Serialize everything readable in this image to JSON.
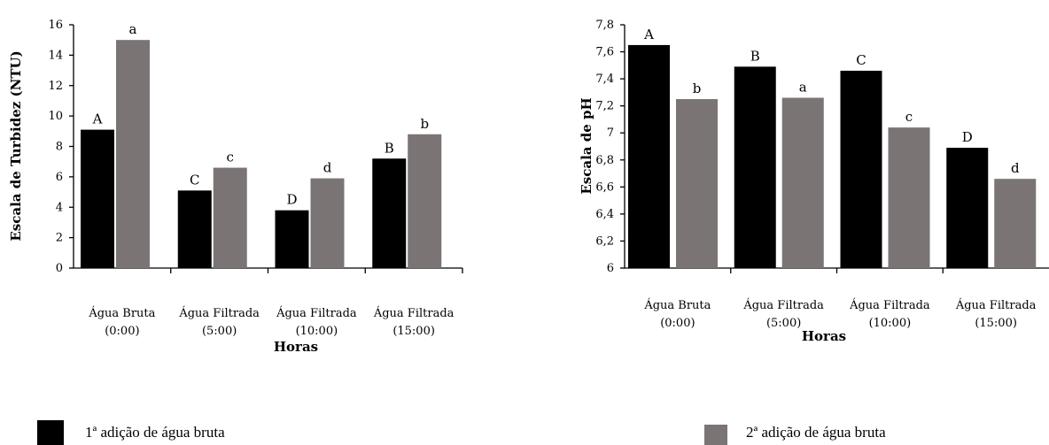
{
  "chart_data": [
    {
      "type": "bar",
      "title": "",
      "xlabel": "Horas",
      "ylabel": "Escala de Turbidez (NTU)",
      "ylim": [
        0,
        16
      ],
      "yticks": [
        "0",
        "2",
        "4",
        "6",
        "8",
        "10",
        "12",
        "14",
        "16"
      ],
      "categories": [
        [
          "Água Bruta",
          "(0:00)"
        ],
        [
          "Água Filtrada",
          "(5:00)"
        ],
        [
          "Água Filtrada",
          "(10:00)"
        ],
        [
          "Água Filtrada",
          "(15:00)"
        ]
      ],
      "series": [
        {
          "name": "1ª adição de água bruta",
          "color": "#000000",
          "values": [
            9.1,
            5.1,
            3.8,
            7.2
          ],
          "labels": [
            "A",
            "C",
            "D",
            "B"
          ]
        },
        {
          "name": "2ª adição de água bruta",
          "color": "#7a7574",
          "values": [
            15.0,
            6.6,
            5.9,
            8.8
          ],
          "labels": [
            "a",
            "c",
            "d",
            "b"
          ]
        }
      ],
      "grid": false
    },
    {
      "type": "bar",
      "title": "",
      "xlabel": "Horas",
      "ylabel": "Escala de pH",
      "ylim": [
        6,
        7.8
      ],
      "yticks": [
        "6",
        "6,2",
        "6,4",
        "6,6",
        "6,8",
        "7",
        "7,2",
        "7,4",
        "7,6",
        "7,8"
      ],
      "categories": [
        [
          "Água Bruta",
          "(0:00)"
        ],
        [
          "Água Filtrada",
          "(5:00)"
        ],
        [
          "Água Filtrada",
          "(10:00)"
        ],
        [
          "Água Filtrada",
          "(15:00)"
        ]
      ],
      "series": [
        {
          "name": "1ª adição de água bruta",
          "color": "#000000",
          "values": [
            7.65,
            7.49,
            7.46,
            6.89
          ],
          "labels": [
            "A",
            "B",
            "C",
            "D"
          ]
        },
        {
          "name": "2ª adição de água bruta",
          "color": "#7a7574",
          "values": [
            7.25,
            7.26,
            7.04,
            6.66
          ],
          "labels": [
            "b",
            "a",
            "c",
            "d"
          ]
        }
      ],
      "grid": false
    }
  ],
  "legend": {
    "items": [
      {
        "label": "1ª adição de água bruta",
        "color": "#000000"
      },
      {
        "label": "2ª adição de água bruta",
        "color": "#7a7574"
      }
    ],
    "placement": "bottom"
  }
}
